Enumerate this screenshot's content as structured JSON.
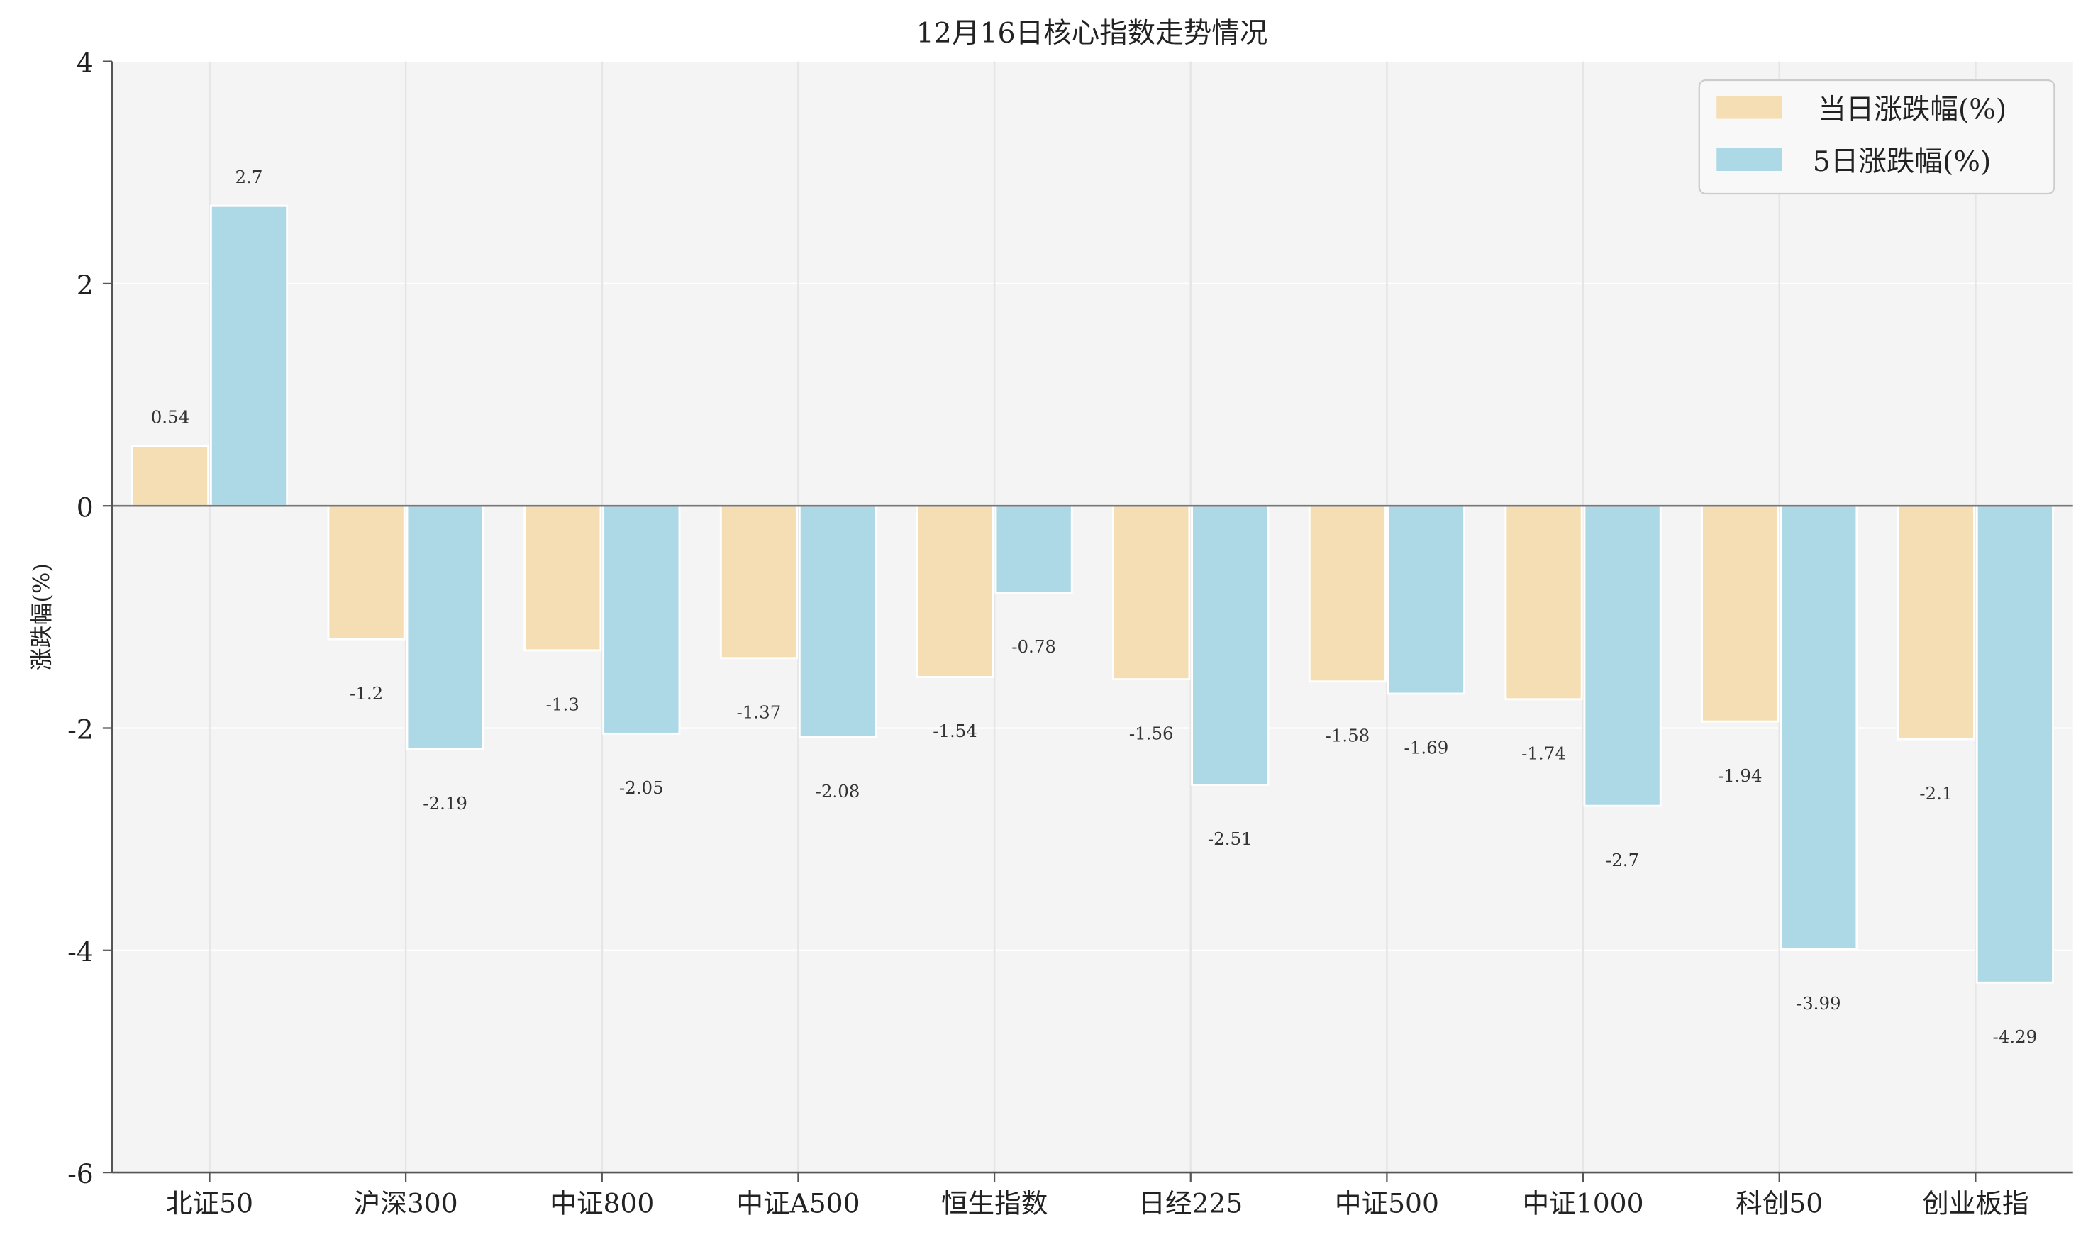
{
  "chart_data": {
    "type": "bar",
    "title": "12月16日核心指数走势情况",
    "xlabel": "",
    "ylabel": "涨跌幅(%)",
    "ylim": [
      -6,
      4
    ],
    "yticks": [
      "4",
      "2",
      "0",
      "-2",
      "-4",
      "-6"
    ],
    "ytick_values": [
      4,
      2,
      0,
      -2,
      -4,
      -6
    ],
    "categories": [
      "北证50",
      "沪深300",
      "中证800",
      "中证A500",
      "恒生指数",
      "日经225",
      "中证500",
      "中证1000",
      "科创50",
      "创业板指"
    ],
    "series": [
      {
        "name": "当日涨跌幅(%)",
        "color": "#f5deb3",
        "values": [
          0.54,
          -1.2,
          -1.3,
          -1.37,
          -1.54,
          -1.56,
          -1.58,
          -1.74,
          -1.94,
          -2.1
        ],
        "labels": [
          "0.54",
          "-1.2",
          "-1.3",
          "-1.37",
          "-1.54",
          "-1.56",
          "-1.58",
          "-1.74",
          "-1.94",
          "-2.1"
        ]
      },
      {
        "name": "5日涨跌幅(%)",
        "color": "#add8e6",
        "values": [
          2.7,
          -2.19,
          -2.05,
          -2.08,
          -0.78,
          -2.51,
          -1.69,
          -2.7,
          -3.99,
          -4.29
        ],
        "labels": [
          "2.7",
          "-2.19",
          "-2.05",
          "-2.08",
          "-0.78",
          "-2.51",
          "-1.69",
          "-2.7",
          "-3.99",
          "-4.29"
        ]
      }
    ],
    "legend_position": "top-right",
    "grid": true,
    "background": "#f4f4f4"
  }
}
